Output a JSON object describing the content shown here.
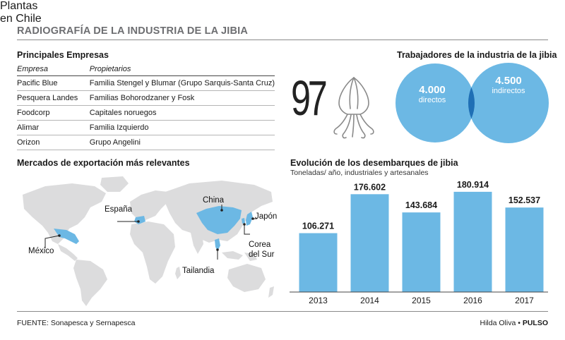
{
  "title": "RADIOGRAFÍA DE LA INDUSTRIA DE LA JIBIA",
  "companies": {
    "heading": "Principales Empresas",
    "col1": "Empresa",
    "col2": "Propietarios",
    "rows": [
      [
        "Pacific Blue",
        "Familia Stengel y Blumar (Grupo Sarquis-Santa Cruz)"
      ],
      [
        "Pesquera Landes",
        "Familias Bohorodzaner y Fosk"
      ],
      [
        "Foodcorp",
        "Capitales noruegos"
      ],
      [
        "Alimar",
        "Familia Izquierdo"
      ],
      [
        "Orizon",
        "Grupo Angelini"
      ]
    ]
  },
  "plants": {
    "number": "97",
    "label_line1": "Plantas",
    "label_line2": "en Chile"
  },
  "workers": {
    "heading": "Trabajadores de la industria de la jibia",
    "direct_value": "4.000",
    "direct_label": "directos",
    "indirect_value": "4.500",
    "indirect_label": "indirectos",
    "color": "#6cb8e4",
    "overlap_color": "#1f6fb5"
  },
  "markets": {
    "heading": "Mercados de exportación más relevantes",
    "labels": {
      "spain": "España",
      "china": "China",
      "japan": "Japón",
      "mexico": "México",
      "korea_line1": "Corea",
      "korea_line2": "del Sur",
      "thailand": "Tailandia"
    },
    "land_color": "#dcdcdd",
    "highlight_color": "#6cb8e4"
  },
  "chart_data": {
    "type": "bar",
    "title": "Evolución de los desembarques de jibia",
    "subtitle": "Toneladas/ año, industriales y artesanales",
    "categories": [
      "2013",
      "2014",
      "2015",
      "2016",
      "2017"
    ],
    "values": [
      106271,
      176602,
      143684,
      180914,
      152537
    ],
    "value_labels": [
      "106.271",
      "176.602",
      "143.684",
      "180.914",
      "152.537"
    ],
    "ylim": [
      0,
      200000
    ],
    "color": "#6cb8e4"
  },
  "footer": {
    "source": "FUENTE: Sonapesca y Sernapesca",
    "author": "Hilda Oliva",
    "separator": "•",
    "brand": "PULSO"
  }
}
